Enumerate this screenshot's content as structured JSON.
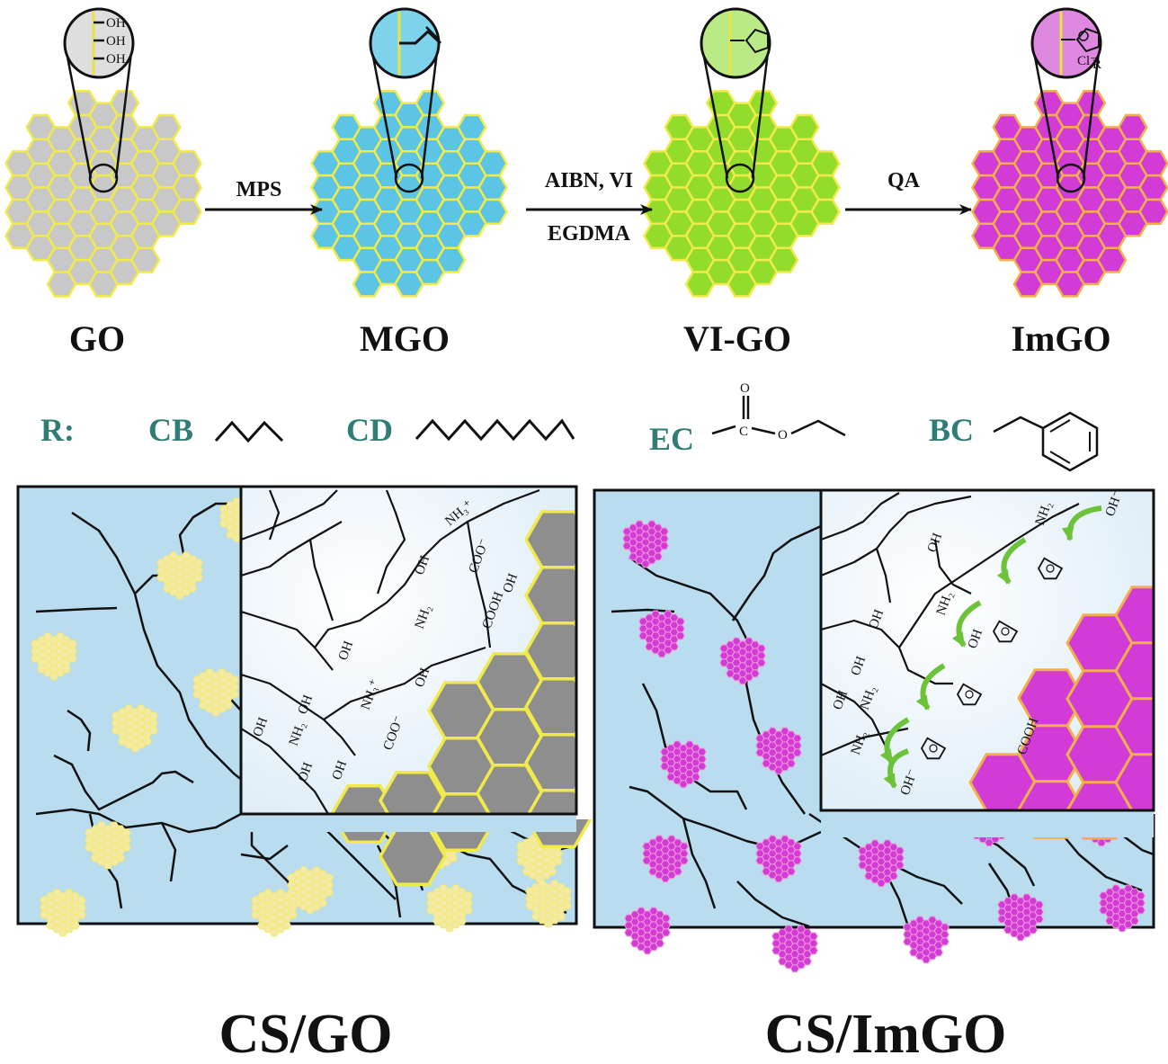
{
  "colors": {
    "go_fill": "#c8c8c8",
    "go_edge": "#f0ea4a",
    "mgo_fill": "#5cc4e4",
    "mgo_edge": "#f0ea4a",
    "vigo_fill": "#94dc2c",
    "vigo_edge": "#f0ea4a",
    "imgo_fill": "#d33bd6",
    "imgo_edge": "#f3b04a",
    "r_label": "#2f7d74",
    "matrix_bg": "#b9dcef",
    "inset_bg": "#f6fafd",
    "arrow_green": "#6cc33a"
  },
  "stages": [
    {
      "label": "GO"
    },
    {
      "label": "MGO"
    },
    {
      "label": "VI-GO"
    },
    {
      "label": "ImGO"
    }
  ],
  "arrows": [
    {
      "above": "MPS",
      "below": ""
    },
    {
      "above": "AIBN, VI",
      "below": "EGDMA"
    },
    {
      "above": "QA",
      "below": ""
    }
  ],
  "zoom_labels": {
    "go": [
      "OH",
      "OH",
      "OH"
    ],
    "imgo_cl": "Cl",
    "imgo_r": "R"
  },
  "r_groups": {
    "prefix": "R:",
    "items": [
      "CB",
      "CD",
      "EC",
      "BC"
    ],
    "ec_atoms": {
      "o_top": "O",
      "c": "C",
      "o_mid": "O"
    }
  },
  "panels": [
    {
      "caption": "CS/GO"
    },
    {
      "caption": "CS/ImGO"
    }
  ],
  "left_inset_labels": [
    "NH₃⁺",
    "COO⁻",
    "OH",
    "NH₂",
    "COOH",
    "OH",
    "OH",
    "OH",
    "NH₃⁺",
    "OH",
    "OH",
    "COO⁻",
    "NH₂",
    "OH",
    "OH"
  ],
  "right_inset_labels": [
    "NH₂",
    "OH",
    "OH⁻",
    "OH",
    "NH₂",
    "OH",
    "OH",
    "NH₂",
    "OH",
    "NH₂",
    "COOH",
    "OH⁻"
  ]
}
